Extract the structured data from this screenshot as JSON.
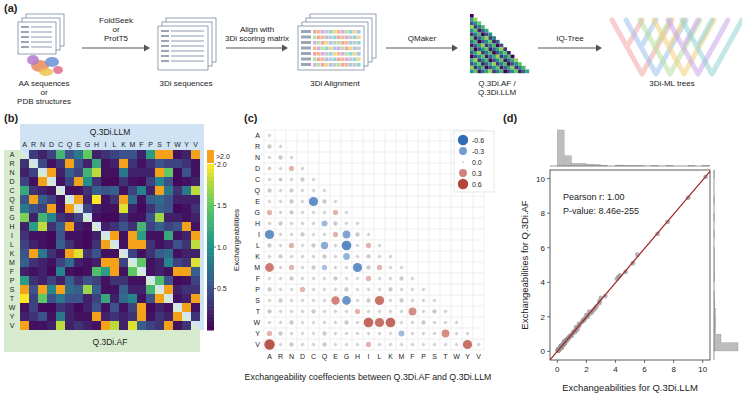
{
  "diagram": {
    "title": "(a)",
    "nodes": [
      {
        "label": [
          "AA sequences",
          "or",
          "PDB structures"
        ]
      },
      {
        "label": [
          "3Di sequences"
        ]
      },
      {
        "label": [
          "3Di Alignment"
        ]
      },
      {
        "label": [
          "Q.3Di.AF /",
          "Q.3Di.LLM"
        ]
      },
      {
        "label": [
          "3Di-ML trees"
        ]
      }
    ],
    "edges": [
      {
        "label": [
          "FoldSeek",
          "or",
          "ProtT5"
        ]
      },
      {
        "label": [
          "Align with",
          "3Di scoring matrix"
        ]
      },
      {
        "label": [
          "QMaker"
        ]
      },
      {
        "label": [
          "IQ-Tree"
        ]
      }
    ]
  },
  "chart_data": [
    {
      "type": "heatmap",
      "title": "(b)",
      "labels": [
        "A",
        "R",
        "N",
        "D",
        "C",
        "Q",
        "E",
        "G",
        "H",
        "I",
        "L",
        "K",
        "M",
        "F",
        "P",
        "S",
        "T",
        "W",
        "Y",
        "V"
      ],
      "upper_label": "Q.3Di.LLM",
      "lower_label": "Q.3Di.AF",
      "lower_values": [
        [],
        [
          0.3
        ],
        [
          0.2,
          0.4
        ],
        [
          0.4,
          0.1,
          3.1
        ],
        [
          1.2,
          0.3,
          0.2,
          0.1
        ],
        [
          0.5,
          2.4,
          0.6,
          0.4,
          0.1
        ],
        [
          0.8,
          0.5,
          0.4,
          4.2,
          0.1,
          2.8
        ],
        [
          1.6,
          0.2,
          1.3,
          0.9,
          0.3,
          0.2,
          0.4
        ],
        [
          0.2,
          1.1,
          1.8,
          0.3,
          0.6,
          2.1,
          0.2,
          0.1
        ],
        [
          0.3,
          0.1,
          0.1,
          0.05,
          0.5,
          0.1,
          0.1,
          0.05,
          0.2
        ],
        [
          0.4,
          0.2,
          0.1,
          0.05,
          0.6,
          0.3,
          0.1,
          0.05,
          0.3,
          6.8
        ],
        [
          0.5,
          5.6,
          0.8,
          0.3,
          0.1,
          2.2,
          1.9,
          0.3,
          0.5,
          0.1,
          0.1
        ],
        [
          0.6,
          0.3,
          0.2,
          0.1,
          0.4,
          0.7,
          0.2,
          0.1,
          0.2,
          4.6,
          10.1,
          0.4
        ],
        [
          0.2,
          0.1,
          0.2,
          0.05,
          0.9,
          0.1,
          0.05,
          0.1,
          1.4,
          1.1,
          3.2,
          0.1,
          1.5
        ],
        [
          1.1,
          0.3,
          0.2,
          0.4,
          0.2,
          0.6,
          0.3,
          0.5,
          0.4,
          0.1,
          0.3,
          0.3,
          0.1,
          0.1
        ],
        [
          4.3,
          0.5,
          2.6,
          0.9,
          2.3,
          0.7,
          0.6,
          1.7,
          0.6,
          0.1,
          0.1,
          0.6,
          0.2,
          0.2,
          1.3
        ],
        [
          2.0,
          0.4,
          1.5,
          0.5,
          0.8,
          0.5,
          0.5,
          0.2,
          0.4,
          1.2,
          0.2,
          0.7,
          0.9,
          0.1,
          0.5,
          5.1
        ],
        [
          0.1,
          0.4,
          0.05,
          0.05,
          0.3,
          0.2,
          0.05,
          0.2,
          0.5,
          0.1,
          0.5,
          0.1,
          0.4,
          2.5,
          0.05,
          0.2,
          0.1
        ],
        [
          0.2,
          0.3,
          0.5,
          0.1,
          0.8,
          0.2,
          0.1,
          0.1,
          4.4,
          0.2,
          0.3,
          0.2,
          0.3,
          7.5,
          0.1,
          0.3,
          0.2,
          2.9
        ],
        [
          2.3,
          0.1,
          0.1,
          0.2,
          1.8,
          0.2,
          0.3,
          0.2,
          0.1,
          8.9,
          1.8,
          0.2,
          1.9,
          0.6,
          0.4,
          0.3,
          2.1,
          0.1,
          0.3
        ]
      ],
      "upper_values": [
        [],
        [
          0.35
        ],
        [
          0.2,
          0.45
        ],
        [
          0.4,
          0.1,
          3.0
        ],
        [
          1.3,
          0.3,
          0.2,
          0.1
        ],
        [
          0.5,
          2.5,
          0.6,
          0.4,
          0.1
        ],
        [
          0.8,
          0.5,
          0.4,
          4.1,
          0.1,
          2.9
        ],
        [
          1.5,
          0.2,
          1.3,
          1.0,
          0.3,
          0.2,
          0.4
        ],
        [
          0.2,
          1.2,
          1.8,
          0.3,
          0.6,
          2.0,
          0.2,
          0.1
        ],
        [
          0.3,
          0.1,
          0.1,
          0.05,
          0.5,
          0.1,
          0.1,
          0.05,
          0.2
        ],
        [
          0.4,
          0.2,
          0.1,
          0.05,
          0.6,
          0.3,
          0.1,
          0.05,
          0.3,
          6.9
        ],
        [
          0.5,
          5.5,
          0.8,
          0.3,
          0.1,
          2.3,
          1.9,
          0.3,
          0.5,
          0.1,
          0.1
        ],
        [
          0.5,
          0.3,
          0.2,
          0.1,
          0.4,
          0.7,
          0.2,
          0.1,
          0.3,
          4.7,
          10.2,
          0.4
        ],
        [
          0.2,
          0.1,
          0.2,
          0.05,
          0.9,
          0.1,
          0.05,
          0.1,
          1.3,
          1.1,
          3.3,
          0.1,
          1.5
        ],
        [
          1.1,
          0.3,
          0.2,
          0.4,
          0.2,
          0.6,
          0.3,
          0.5,
          0.4,
          0.1,
          0.3,
          0.3,
          0.1,
          0.1
        ],
        [
          4.2,
          0.5,
          2.7,
          0.9,
          2.2,
          0.7,
          0.6,
          1.7,
          0.6,
          0.1,
          0.1,
          0.6,
          0.2,
          0.2,
          1.4
        ],
        [
          2.1,
          0.4,
          1.5,
          0.5,
          0.8,
          0.5,
          0.5,
          0.2,
          0.4,
          1.2,
          0.2,
          0.7,
          0.9,
          0.1,
          0.5,
          5.2
        ],
        [
          0.1,
          0.4,
          0.05,
          0.05,
          0.3,
          0.2,
          0.05,
          0.2,
          0.5,
          0.1,
          0.5,
          0.1,
          0.4,
          2.6,
          0.05,
          0.2,
          0.1
        ],
        [
          0.2,
          0.3,
          0.5,
          0.1,
          0.8,
          0.2,
          0.1,
          0.1,
          4.3,
          0.2,
          0.3,
          0.2,
          0.3,
          7.6,
          0.1,
          0.3,
          0.2,
          2.9
        ],
        [
          2.4,
          0.1,
          0.1,
          0.2,
          1.8,
          0.2,
          0.3,
          0.2,
          0.1,
          9.0,
          1.8,
          0.2,
          1.9,
          0.6,
          0.4,
          0.3,
          2.1,
          0.1,
          0.3
        ]
      ],
      "colorbar": {
        "label": "Exchangeabilities",
        "range": [
          0,
          2
        ],
        "ticks": [
          0.5,
          {
            "value": 1,
            "label": "1.0"
          },
          1.5,
          {
            "value": 2,
            "label": "2.0"
          }
        ],
        "over_label": ">2.0"
      }
    },
    {
      "type": "bubble_matrix",
      "title": "(c)",
      "labels": [
        "A",
        "R",
        "N",
        "D",
        "C",
        "Q",
        "E",
        "G",
        "H",
        "I",
        "L",
        "K",
        "M",
        "F",
        "P",
        "S",
        "T",
        "W",
        "Y",
        "V"
      ],
      "xlabel": "Exchangeability coeffecients between Q.3Di.AF and Q.3Di.LLM",
      "values": [
        [
          0
        ],
        [
          0.05,
          0
        ],
        [
          0,
          0.05,
          0
        ],
        [
          0.02,
          0,
          0.1,
          0
        ],
        [
          0,
          0.03,
          0,
          0.05,
          0
        ],
        [
          0.05,
          0,
          0.04,
          0,
          0,
          0
        ],
        [
          0,
          0,
          0.05,
          0,
          -0.45,
          0.05,
          0
        ],
        [
          0.1,
          0,
          0.05,
          0,
          0,
          0,
          0.1,
          0
        ],
        [
          0,
          0.05,
          0,
          0,
          0,
          -0.15,
          0.05,
          0,
          0
        ],
        [
          -0.45,
          0,
          0,
          0.05,
          0,
          0,
          0.1,
          -0.3,
          0.05,
          0
        ],
        [
          0.05,
          0,
          0.1,
          0,
          0.05,
          -0.25,
          0,
          -0.5,
          0,
          0.1,
          0
        ],
        [
          0,
          0.05,
          0,
          0,
          0,
          0.05,
          0,
          -0.2,
          0,
          0.05,
          0,
          0
        ],
        [
          0.4,
          0,
          0.1,
          0,
          0.05,
          -0.1,
          0,
          0,
          -0.45,
          0.05,
          0.1,
          0,
          0
        ],
        [
          0,
          0,
          0.05,
          0,
          0,
          0,
          0.05,
          0,
          0,
          0.1,
          0,
          0,
          0.05,
          0
        ],
        [
          0.05,
          0,
          0,
          0.1,
          0,
          0,
          0,
          0.05,
          0,
          0,
          0,
          0.05,
          0,
          0,
          0
        ],
        [
          0,
          0.05,
          0,
          0,
          0,
          0,
          0.35,
          -0.4,
          0,
          0.05,
          0.45,
          0,
          0.05,
          0,
          0,
          0
        ],
        [
          0.05,
          0,
          0,
          0,
          0.05,
          0,
          0,
          0,
          0.1,
          0,
          0,
          0,
          0,
          0.3,
          0,
          0.05,
          0
        ],
        [
          0,
          0,
          0.05,
          0,
          0,
          0,
          0,
          0.05,
          0,
          0.5,
          0.45,
          0.5,
          0,
          0,
          0.05,
          0,
          0,
          0
        ],
        [
          0.1,
          0.05,
          0,
          0,
          0,
          0.05,
          0,
          0,
          0,
          0,
          0,
          0,
          -0.15,
          0,
          0,
          0,
          0.3,
          0,
          0
        ],
        [
          0.6,
          0,
          0.05,
          0,
          0,
          0.05,
          0,
          0,
          0,
          0.1,
          0,
          0,
          0,
          0,
          0,
          0,
          0,
          0,
          0.45,
          0
        ]
      ],
      "size_legend": [
        -0.6,
        -0.3,
        {
          "value": 0,
          "label": "0.0"
        },
        0.3,
        0.6
      ]
    },
    {
      "type": "scatter",
      "title": "(d)",
      "xlabel": "Exchangeabilities for Q.3Di.LLM",
      "ylabel": "Exchangeabilities for Q.3Di.AF",
      "xlim": [
        -0.5,
        10.5
      ],
      "ylim": [
        -0.5,
        10.5
      ],
      "xticks": [
        0,
        2,
        4,
        6,
        8,
        10
      ],
      "yticks": [
        0,
        2,
        4,
        6,
        8,
        10
      ],
      "annotations": [
        "Pearson r: 1.00",
        "P-value: 8.46e-255"
      ]
    }
  ]
}
